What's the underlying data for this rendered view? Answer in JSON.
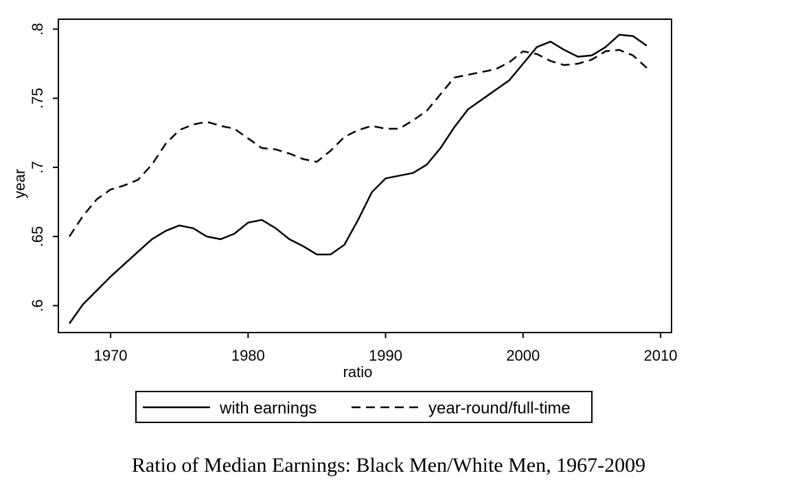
{
  "chart_data": {
    "type": "line",
    "title": "",
    "caption": "Ratio of Median Earnings: Black Men/White Men, 1967-2009",
    "xlabel": "ratio",
    "ylabel": "year",
    "xlim": [
      1966.2,
      2010.8
    ],
    "ylim": [
      0.5805,
      0.8072
    ],
    "x_ticks": [
      1970,
      1980,
      1990,
      2000,
      2010
    ],
    "x_tick_labels": [
      "1970",
      "1980",
      "1990",
      "2000",
      "2010"
    ],
    "y_ticks": [
      0.6,
      0.65,
      0.7,
      0.75,
      0.8
    ],
    "y_tick_labels": [
      ".6",
      ".65",
      ".7",
      ".75",
      ".8"
    ],
    "grid": false,
    "legend_position": "bottom",
    "x": [
      1967,
      1968,
      1969,
      1970,
      1971,
      1972,
      1973,
      1974,
      1975,
      1976,
      1977,
      1978,
      1979,
      1980,
      1981,
      1982,
      1983,
      1984,
      1985,
      1986,
      1987,
      1988,
      1989,
      1990,
      1991,
      1992,
      1993,
      1994,
      1995,
      1996,
      1997,
      1998,
      1999,
      2000,
      2001,
      2002,
      2003,
      2004,
      2005,
      2006,
      2007,
      2008,
      2009
    ],
    "series": [
      {
        "name": "with earnings",
        "style": "solid",
        "values": [
          0.587,
          0.601,
          0.611,
          0.621,
          0.63,
          0.639,
          0.648,
          0.654,
          0.658,
          0.656,
          0.65,
          0.648,
          0.652,
          0.66,
          0.662,
          0.656,
          0.648,
          0.643,
          0.637,
          0.637,
          0.644,
          0.662,
          0.682,
          0.692,
          0.694,
          0.696,
          0.702,
          0.714,
          0.729,
          0.742,
          0.749,
          0.756,
          0.763,
          0.775,
          0.787,
          0.791,
          0.785,
          0.78,
          0.781,
          0.787,
          0.796,
          0.795,
          0.788
        ]
      },
      {
        "name": "year-round/full-time",
        "style": "dashed",
        "values": [
          0.65,
          0.665,
          0.677,
          0.684,
          0.687,
          0.691,
          0.702,
          0.717,
          0.727,
          0.731,
          0.733,
          0.73,
          0.728,
          0.721,
          0.714,
          0.713,
          0.71,
          0.706,
          0.704,
          0.712,
          0.722,
          0.727,
          0.73,
          0.728,
          0.728,
          0.734,
          0.741,
          0.753,
          0.765,
          0.767,
          0.769,
          0.771,
          0.776,
          0.784,
          0.782,
          0.777,
          0.774,
          0.775,
          0.778,
          0.784,
          0.785,
          0.781,
          0.772
        ]
      }
    ]
  },
  "colors": {
    "line": "#000000",
    "background": "#ffffff"
  }
}
